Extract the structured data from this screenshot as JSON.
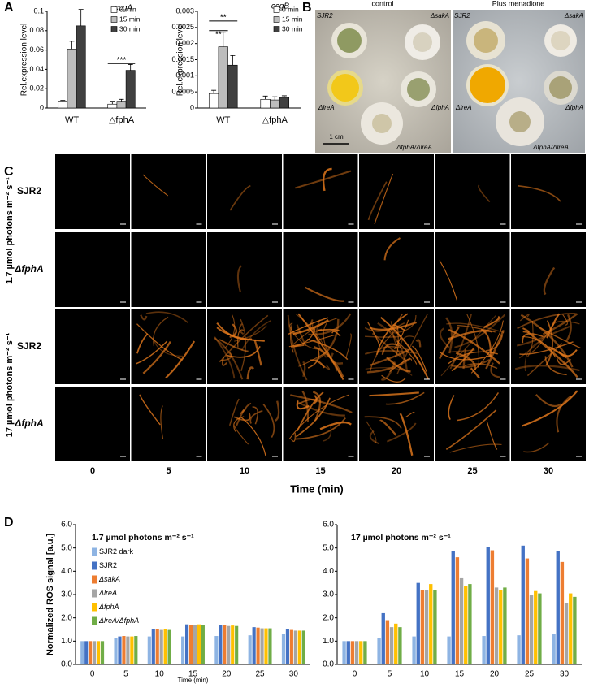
{
  "panel_labels": [
    "A",
    "B",
    "C",
    "D"
  ],
  "chart_data": [
    {
      "type": "bar",
      "title": "ccgA",
      "ylabel": "Rel.expression level",
      "categories": [
        "WT",
        "△fphA"
      ],
      "ylim": [
        0,
        0.1
      ],
      "yticks": [
        0,
        0.02,
        0.04,
        0.06,
        0.08,
        0.1
      ],
      "legend": "upper right",
      "annotations": [
        "***"
      ],
      "series": [
        {
          "name": "0 min",
          "color": "#ffffff",
          "values": [
            0.007,
            0.004
          ],
          "errors": [
            0.001,
            0.003
          ]
        },
        {
          "name": "15 min",
          "color": "#bdbdbd",
          "values": [
            0.061,
            0.007
          ],
          "errors": [
            0.008,
            0.002
          ]
        },
        {
          "name": "30 min",
          "color": "#404040",
          "values": [
            0.085,
            0.039
          ],
          "errors": [
            0.017,
            0.006
          ]
        }
      ]
    },
    {
      "type": "bar",
      "title": "ccgB",
      "ylabel": "Rel.expression level",
      "categories": [
        "WT",
        "△fphA"
      ],
      "ylim": [
        0,
        0.003
      ],
      "yticks": [
        0,
        0.0005,
        0.001,
        0.0015,
        0.002,
        0.0025,
        0.003
      ],
      "legend": "upper right",
      "annotations": [
        "**",
        "**"
      ],
      "series": [
        {
          "name": "0 min",
          "color": "#ffffff",
          "values": [
            0.00045,
            0.00027
          ],
          "errors": [
            0.0001,
            0.0001
          ]
        },
        {
          "name": "15 min",
          "color": "#bdbdbd",
          "values": [
            0.0019,
            0.00025
          ],
          "errors": [
            0.00045,
            0.0001
          ]
        },
        {
          "name": "30 min",
          "color": "#404040",
          "values": [
            0.00133,
            0.00033
          ],
          "errors": [
            0.0003,
            5e-05
          ]
        }
      ]
    },
    {
      "type": "bar",
      "title": "1.7 µmol photons m⁻² s⁻¹",
      "ylabel": "Normalized ROS signal [a.u.]",
      "xlabel": "Time (min)",
      "categories": [
        "0",
        "5",
        "10",
        "15",
        "20",
        "25",
        "30"
      ],
      "ylim": [
        0,
        6
      ],
      "legend": "upper left",
      "yticks": [
        {
          "value": 0,
          "label": "0.0"
        },
        {
          "value": 1,
          "label": "1.0"
        },
        {
          "value": 2,
          "label": "2.0"
        },
        {
          "value": 3,
          "label": "3.0"
        },
        {
          "value": 4,
          "label": "4.0"
        },
        {
          "value": 5,
          "label": "5.0"
        },
        {
          "value": 6,
          "label": "6.0"
        }
      ],
      "series": [
        {
          "name": "SJR2 dark",
          "color": "#8eb4e3",
          "values": [
            1.0,
            1.12,
            1.2,
            1.2,
            1.22,
            1.25,
            1.3
          ]
        },
        {
          "name": "SJR2",
          "color": "#4472c4",
          "values": [
            1.0,
            1.2,
            1.5,
            1.72,
            1.7,
            1.6,
            1.5
          ]
        },
        {
          "name": "ΔsakA",
          "color": "#ed7d31",
          "values": [
            1.0,
            1.22,
            1.5,
            1.7,
            1.68,
            1.58,
            1.48
          ]
        },
        {
          "name": "ΔlreA",
          "color": "#a5a5a5",
          "values": [
            1.0,
            1.2,
            1.48,
            1.7,
            1.65,
            1.55,
            1.45
          ]
        },
        {
          "name": "ΔfphA",
          "color": "#ffc000",
          "values": [
            1.0,
            1.2,
            1.5,
            1.72,
            1.67,
            1.55,
            1.45
          ]
        },
        {
          "name": "ΔlreA/ΔfphA",
          "color": "#70ad47",
          "values": [
            1.0,
            1.22,
            1.48,
            1.7,
            1.65,
            1.55,
            1.45
          ]
        }
      ]
    },
    {
      "type": "bar",
      "title": "17 µmol photons m⁻² s⁻¹",
      "categories": [
        "0",
        "5",
        "10",
        "15",
        "20",
        "25",
        "30"
      ],
      "ylim": [
        0,
        6
      ],
      "yticks": [
        {
          "value": 0,
          "label": "0.0"
        },
        {
          "value": 1,
          "label": "1.0"
        },
        {
          "value": 2,
          "label": "2.0"
        },
        {
          "value": 3,
          "label": "3.0"
        },
        {
          "value": 4,
          "label": "4.0"
        },
        {
          "value": 5,
          "label": "5.0"
        },
        {
          "value": 6,
          "label": "6.0"
        }
      ],
      "series": [
        {
          "name": "SJR2 dark",
          "color": "#8eb4e3",
          "values": [
            1.0,
            1.12,
            1.2,
            1.2,
            1.22,
            1.25,
            1.3
          ]
        },
        {
          "name": "SJR2",
          "color": "#4472c4",
          "values": [
            1.0,
            2.2,
            3.5,
            4.85,
            5.05,
            5.1,
            4.85
          ]
        },
        {
          "name": "ΔsakA",
          "color": "#ed7d31",
          "values": [
            1.0,
            1.9,
            3.2,
            4.6,
            4.9,
            4.55,
            4.4
          ]
        },
        {
          "name": "ΔlreA",
          "color": "#a5a5a5",
          "values": [
            1.0,
            1.6,
            3.2,
            3.7,
            3.3,
            3.0,
            2.65
          ]
        },
        {
          "name": "ΔfphA",
          "color": "#ffc000",
          "values": [
            1.0,
            1.75,
            3.45,
            3.35,
            3.2,
            3.15,
            3.05
          ]
        },
        {
          "name": "ΔlreA/ΔfphA",
          "color": "#70ad47",
          "values": [
            1.0,
            1.6,
            3.2,
            3.45,
            3.3,
            3.05,
            2.9
          ]
        }
      ]
    }
  ],
  "panel_b": {
    "headers": [
      "control",
      "Plus menadione"
    ],
    "control_labels": [
      "SJR2",
      "ΔsakA",
      "ΔlreA",
      "ΔfphA",
      "ΔfphA/ΔlreA"
    ],
    "menadione_labels": [
      "SJR2",
      "ΔsakA",
      "ΔlreA",
      "ΔfphA",
      "ΔfphA/ΔlreA"
    ],
    "scale": "1 cm"
  },
  "panel_c": {
    "groups": [
      "1.7 µmol photons m⁻² s⁻¹",
      "17 µmol photons m⁻² s⁻¹"
    ],
    "rows": [
      "SJR2",
      "ΔfphA",
      "SJR2",
      "ΔfphA"
    ],
    "columns": [
      "0",
      "5",
      "10",
      "15",
      "20",
      "25",
      "30"
    ],
    "xlabel": "Time (min)"
  }
}
